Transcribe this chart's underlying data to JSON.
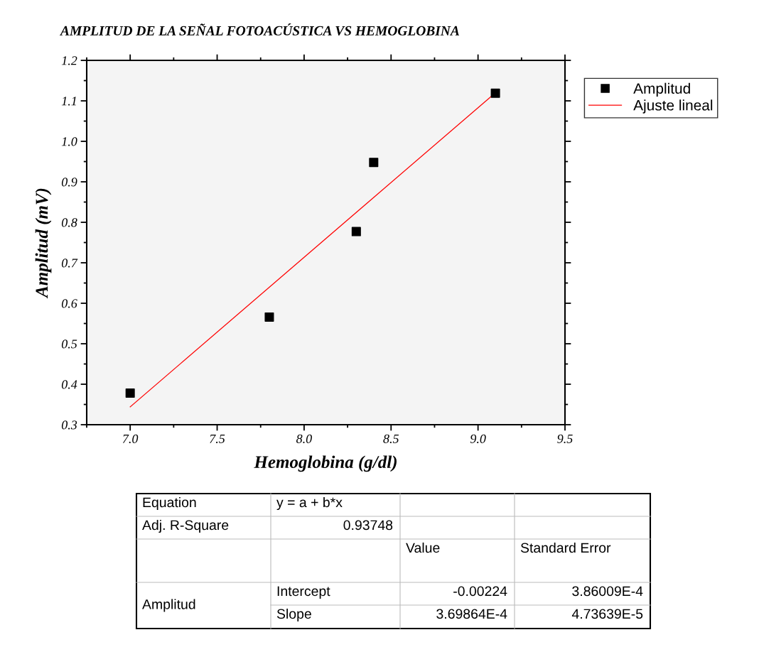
{
  "chart_data": {
    "type": "scatter",
    "title": "AMPLITUD DE LA SEÑAL FOTOACÚSTICA VS HEMOGLOBINA",
    "xlabel": "Hemoglobina (g/dl)",
    "ylabel": "Amplitud (mV)",
    "series": [
      {
        "name": "Amplitud",
        "color": "#000000",
        "marker": "square",
        "x": [
          7.0,
          7.8,
          8.3,
          8.4,
          9.1
        ],
        "values": [
          0.378,
          0.566,
          0.777,
          0.948,
          1.119
        ]
      },
      {
        "name": "Ajuste lineal",
        "type": "line",
        "color": "#ff0000",
        "marker": "none",
        "line_style": "solid",
        "x": [
          7.0,
          9.1
        ],
        "values": [
          0.344,
          1.12
        ]
      }
    ],
    "xlim": [
      6.75,
      9.5
    ],
    "xticks": [
      {
        "value": 7.0,
        "label": "7.0"
      },
      7.5,
      {
        "value": 8.0,
        "label": "8.0"
      },
      8.5,
      {
        "value": 9.0,
        "label": "9.0"
      },
      9.5
    ],
    "ylim": [
      0.3,
      1.2
    ],
    "yticks": [
      0.3,
      0.4,
      0.5,
      0.6,
      0.7,
      0.8,
      0.9,
      {
        "value": 1.0,
        "label": "1.0"
      },
      1.1,
      1.2
    ],
    "grid": false,
    "legend": "top right",
    "annotations": [
      "Equation",
      "y = a + b*x",
      "Adj. R-Square",
      "0.93748",
      "Value",
      "Standard Error",
      "Amplitud",
      "Intercept",
      "-0.00224",
      "3.86009E-4",
      "Slope",
      "3.69864E-4",
      "4.73639E-5"
    ]
  }
}
